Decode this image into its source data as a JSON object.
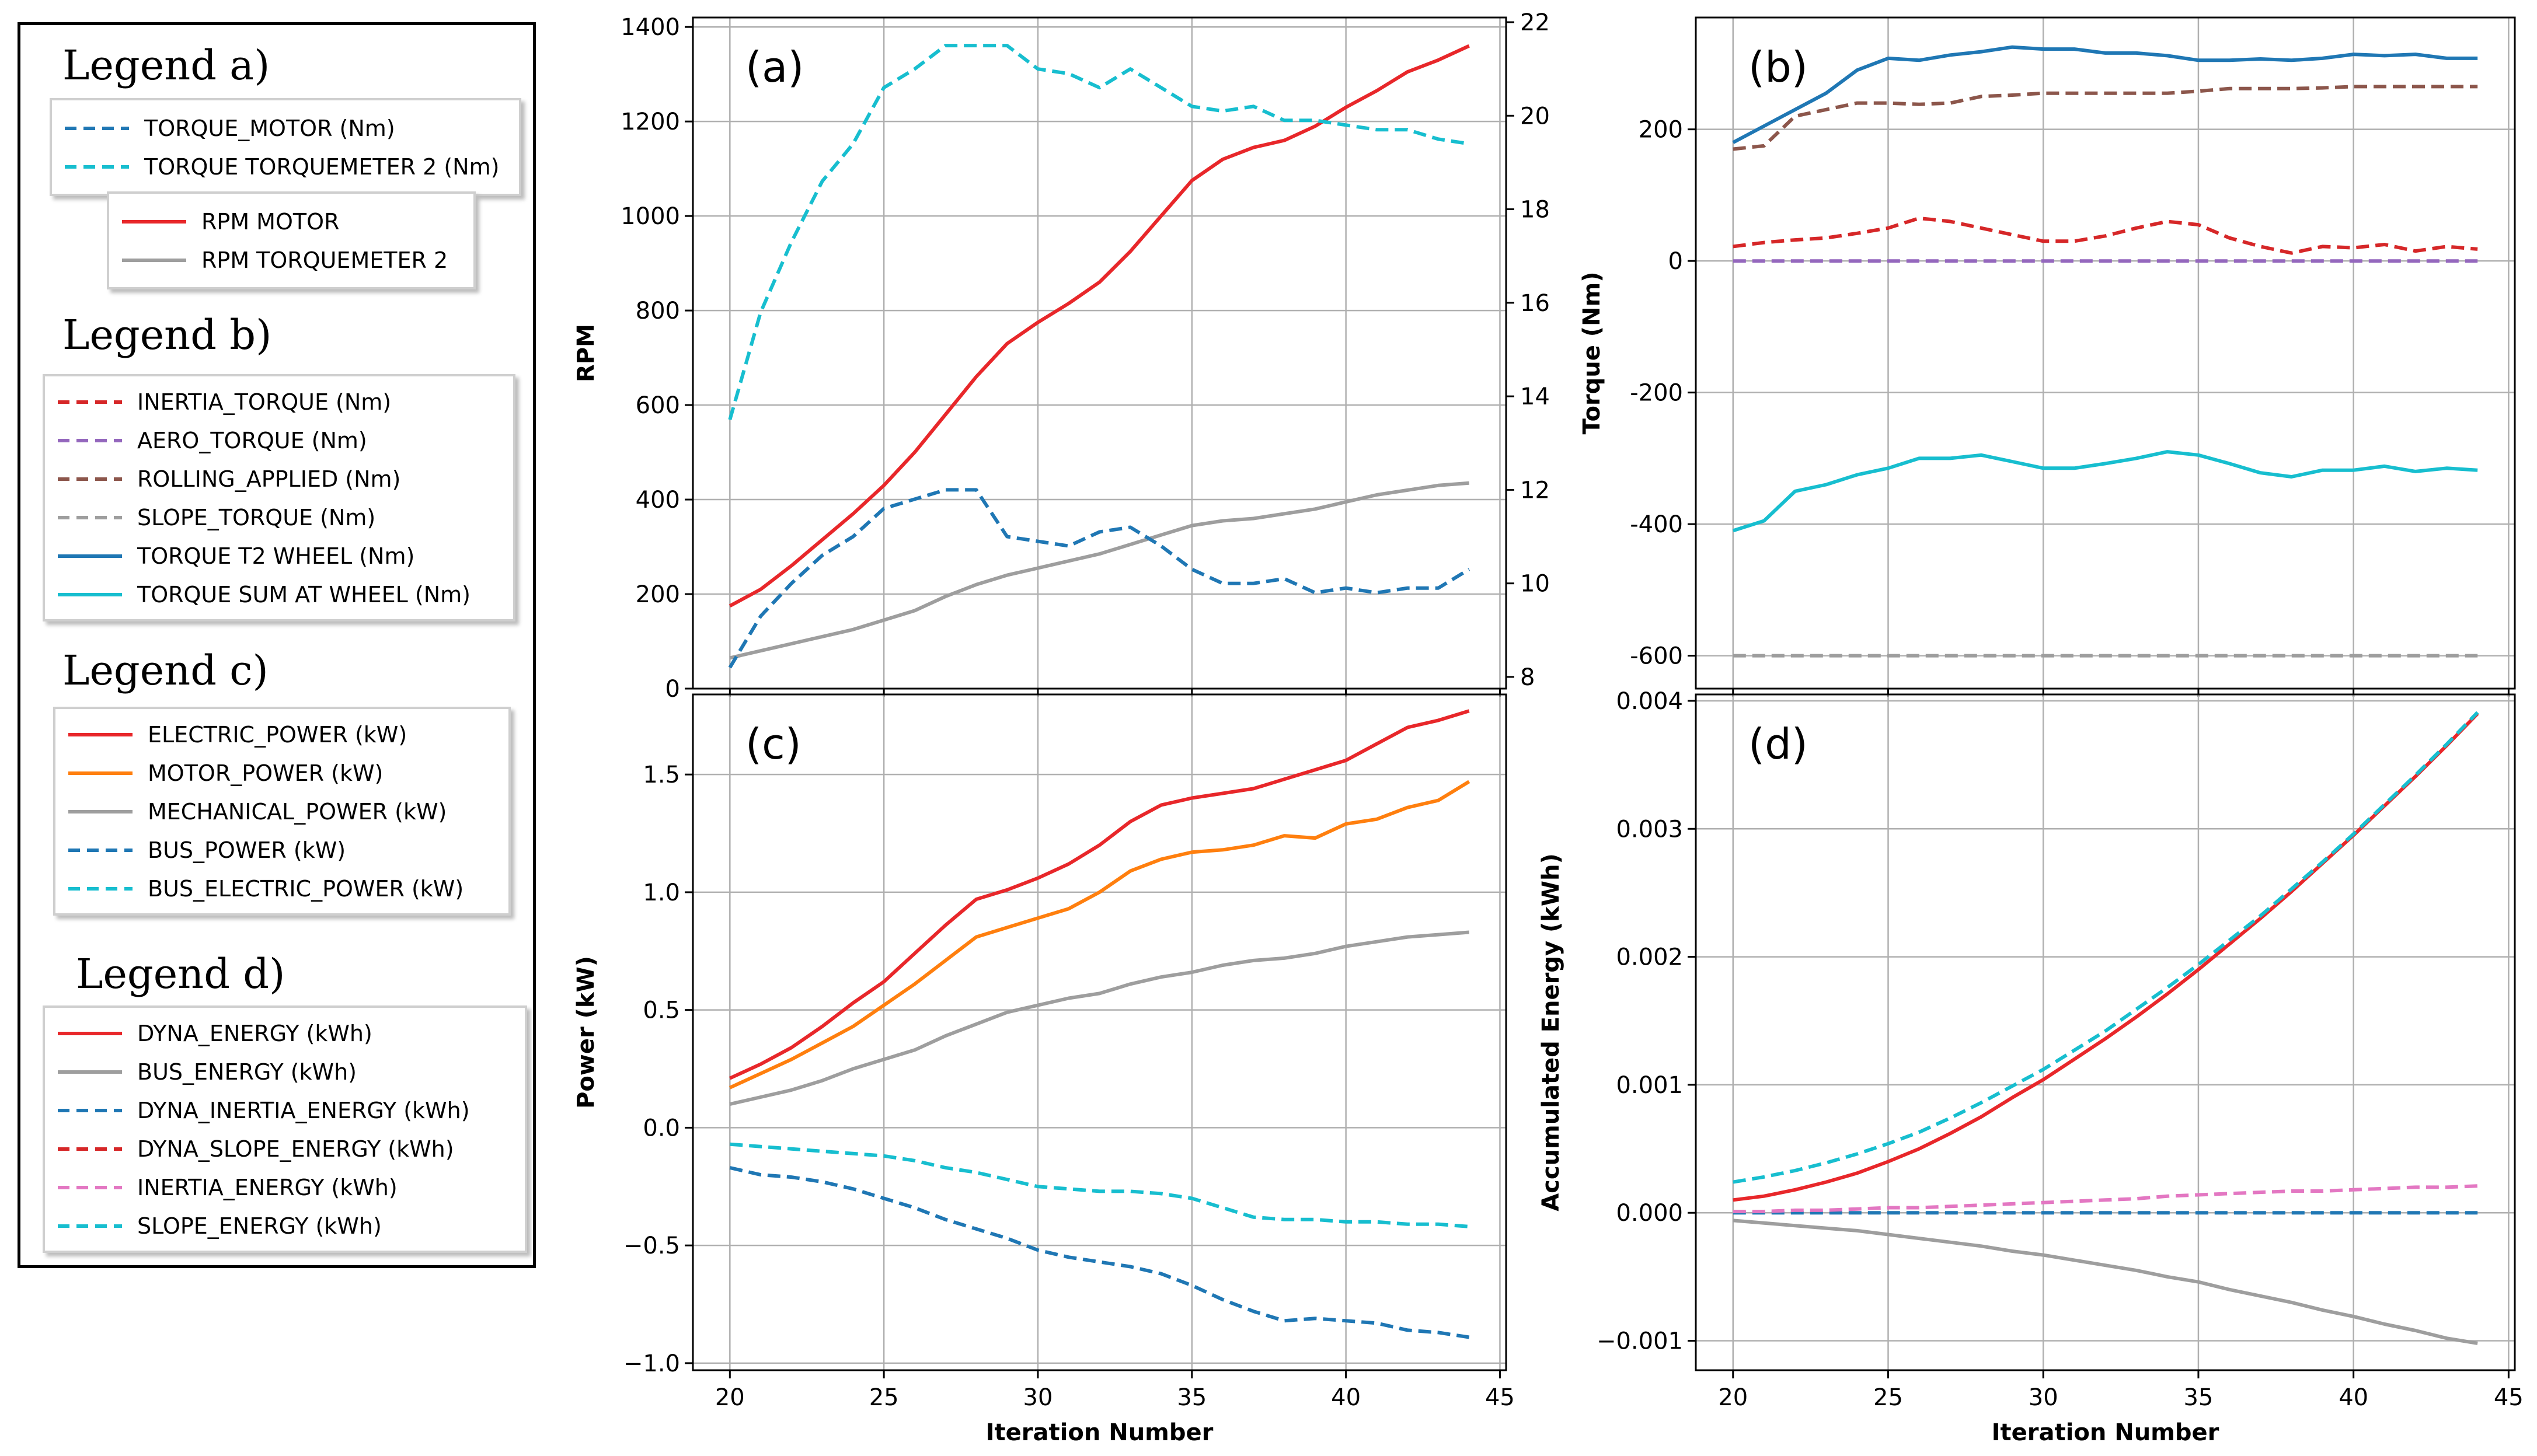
{
  "legends": [
    {
      "heading": "Legend a)",
      "groups": [
        {
          "entries": [
            {
              "label": "TORQUE_MOTOR (Nm)",
              "color": "#1f77b4",
              "dash": true
            },
            {
              "label": "TORQUE TORQUEMETER 2 (Nm)",
              "color": "#17becf",
              "dash": true
            }
          ]
        },
        {
          "entries": [
            {
              "label": "RPM MOTOR",
              "color": "#e8272a",
              "dash": false
            },
            {
              "label": "RPM TORQUEMETER 2",
              "color": "#9e9e9e",
              "dash": false
            }
          ]
        }
      ]
    },
    {
      "heading": "Legend b)",
      "groups": [
        {
          "entries": [
            {
              "label": "INERTIA_TORQUE (Nm)",
              "color": "#d62728",
              "dash": true
            },
            {
              "label": "AERO_TORQUE (Nm)",
              "color": "#9467bd",
              "dash": true
            },
            {
              "label": "ROLLING_APPLIED (Nm)",
              "color": "#8c564b",
              "dash": true
            },
            {
              "label": "SLOPE_TORQUE (Nm)",
              "color": "#9e9e9e",
              "dash": true
            },
            {
              "label": "TORQUE T2 WHEEL (Nm)",
              "color": "#1f77b4",
              "dash": false
            },
            {
              "label": "TORQUE SUM AT WHEEL (Nm)",
              "color": "#17becf",
              "dash": false
            }
          ]
        }
      ]
    },
    {
      "heading": "Legend c)",
      "groups": [
        {
          "entries": [
            {
              "label": "ELECTRIC_POWER (kW)",
              "color": "#e8272a",
              "dash": false
            },
            {
              "label": "MOTOR_POWER (kW)",
              "color": "#ff7f0e",
              "dash": false
            },
            {
              "label": "MECHANICAL_POWER (kW)",
              "color": "#9e9e9e",
              "dash": false
            },
            {
              "label": "BUS_POWER (kW)",
              "color": "#1f77b4",
              "dash": true
            },
            {
              "label": "BUS_ELECTRIC_POWER (kW)",
              "color": "#17becf",
              "dash": true
            }
          ]
        }
      ]
    },
    {
      "heading": "Legend d)",
      "groups": [
        {
          "entries": [
            {
              "label": "DYNA_ENERGY (kWh)",
              "color": "#e8272a",
              "dash": false
            },
            {
              "label": "BUS_ENERGY (kWh)",
              "color": "#9e9e9e",
              "dash": false
            },
            {
              "label": "DYNA_INERTIA_ENERGY (kWh)",
              "color": "#1f77b4",
              "dash": true
            },
            {
              "label": "DYNA_SLOPE_ENERGY (kWh)",
              "color": "#d62728",
              "dash": true
            },
            {
              "label": "INERTIA_ENERGY (kWh)",
              "color": "#e377c2",
              "dash": true
            },
            {
              "label": "SLOPE_ENERGY (kWh)",
              "color": "#17becf",
              "dash": true
            }
          ]
        }
      ]
    }
  ],
  "chart_data": [
    {
      "id": "a",
      "panel_label": "(a)",
      "type": "line",
      "xlabel": "",
      "ylabel": "RPM",
      "ylabel_right": "Torque (Nm)",
      "xlim": [
        18.8,
        45.2
      ],
      "ylim": [
        0,
        1420
      ],
      "ylim_right": [
        7.75,
        22.1
      ],
      "xticks": [
        20,
        25,
        30,
        35,
        40,
        45
      ],
      "show_xtick_labels": false,
      "yticks": [
        0,
        200,
        400,
        600,
        800,
        1000,
        1200,
        1400
      ],
      "yticks_right": [
        8,
        10,
        12,
        14,
        16,
        18,
        20,
        22
      ],
      "grid": true,
      "x": [
        20,
        21,
        22,
        23,
        24,
        25,
        26,
        27,
        28,
        29,
        30,
        31,
        32,
        33,
        34,
        35,
        36,
        37,
        38,
        39,
        40,
        41,
        42,
        43,
        44
      ],
      "series": [
        {
          "axis": "left",
          "color": "#e8272a",
          "dash": false,
          "values": [
            175,
            210,
            260,
            315,
            370,
            430,
            500,
            580,
            660,
            730,
            775,
            815,
            860,
            925,
            1000,
            1075,
            1120,
            1145,
            1160,
            1190,
            1230,
            1265,
            1305,
            1330,
            1360
          ]
        },
        {
          "axis": "left",
          "color": "#9e9e9e",
          "dash": false,
          "values": [
            65,
            80,
            95,
            110,
            125,
            145,
            165,
            195,
            220,
            240,
            255,
            270,
            285,
            305,
            325,
            345,
            355,
            360,
            370,
            380,
            395,
            410,
            420,
            430,
            435
          ]
        },
        {
          "axis": "right",
          "color": "#1f77b4",
          "dash": true,
          "values": [
            8.2,
            9.3,
            10.0,
            10.6,
            11.0,
            11.6,
            11.8,
            12.0,
            12.0,
            11.0,
            10.9,
            10.8,
            11.1,
            11.2,
            10.8,
            10.3,
            10.0,
            10.0,
            10.1,
            9.8,
            9.9,
            9.8,
            9.9,
            9.9,
            10.3
          ]
        },
        {
          "axis": "right",
          "color": "#17becf",
          "dash": true,
          "values": [
            13.5,
            15.8,
            17.3,
            18.6,
            19.4,
            20.6,
            21.0,
            21.5,
            21.5,
            21.5,
            21.0,
            20.9,
            20.6,
            21.0,
            20.6,
            20.2,
            20.1,
            20.2,
            19.9,
            19.9,
            19.8,
            19.7,
            19.7,
            19.5,
            19.4
          ]
        }
      ]
    },
    {
      "id": "b",
      "panel_label": "(b)",
      "type": "line",
      "xlabel": "",
      "ylabel": "Torque (Nm)",
      "xlim": [
        18.8,
        45.2
      ],
      "ylim": [
        -650,
        370
      ],
      "xticks": [
        20,
        25,
        30,
        35,
        40,
        45
      ],
      "show_xtick_labels": false,
      "yticks": [
        -600,
        -400,
        -200,
        0,
        200
      ],
      "grid": true,
      "x": [
        20,
        21,
        22,
        23,
        24,
        25,
        26,
        27,
        28,
        29,
        30,
        31,
        32,
        33,
        34,
        35,
        36,
        37,
        38,
        39,
        40,
        41,
        42,
        43,
        44
      ],
      "series": [
        {
          "color": "#1f77b4",
          "dash": false,
          "values": [
            180,
            205,
            230,
            255,
            290,
            308,
            305,
            313,
            318,
            325,
            322,
            322,
            316,
            316,
            312,
            305,
            305,
            307,
            305,
            308,
            314,
            312,
            314,
            308,
            308
          ]
        },
        {
          "color": "#17becf",
          "dash": false,
          "values": [
            -410,
            -395,
            -350,
            -340,
            -325,
            -315,
            -300,
            -300,
            -295,
            -305,
            -315,
            -315,
            -308,
            -300,
            -290,
            -295,
            -308,
            -322,
            -328,
            -318,
            -318,
            -312,
            -320,
            -315,
            -318
          ]
        },
        {
          "color": "#8c564b",
          "dash": true,
          "values": [
            170,
            175,
            220,
            230,
            240,
            240,
            238,
            240,
            250,
            252,
            255,
            255,
            255,
            255,
            255,
            258,
            262,
            262,
            262,
            263,
            265,
            265,
            265,
            265,
            265
          ]
        },
        {
          "color": "#d62728",
          "dash": true,
          "values": [
            22,
            28,
            32,
            35,
            42,
            50,
            65,
            60,
            50,
            40,
            30,
            30,
            38,
            50,
            60,
            55,
            35,
            22,
            12,
            22,
            20,
            25,
            15,
            22,
            18
          ]
        },
        {
          "color": "#9467bd",
          "dash": true,
          "values": [
            0,
            0,
            0,
            0,
            0,
            0,
            0,
            0,
            0,
            0,
            0,
            0,
            0,
            0,
            0,
            0,
            0,
            0,
            0,
            0,
            0,
            0,
            0,
            0,
            0
          ]
        },
        {
          "color": "#9e9e9e",
          "dash": true,
          "values": [
            -600,
            -600,
            -600,
            -600,
            -600,
            -600,
            -600,
            -600,
            -600,
            -600,
            -600,
            -600,
            -600,
            -600,
            -600,
            -600,
            -600,
            -600,
            -600,
            -600,
            -600,
            -600,
            -600,
            -600,
            -600
          ]
        }
      ]
    },
    {
      "id": "c",
      "panel_label": "(c)",
      "type": "line",
      "xlabel": "Iteration Number",
      "ylabel": "Power (kW)",
      "xlim": [
        18.8,
        45.2
      ],
      "ylim": [
        -1.03,
        1.84
      ],
      "xticks": [
        20,
        25,
        30,
        35,
        40,
        45
      ],
      "show_xtick_labels": true,
      "yticks": [
        -1.0,
        -0.5,
        0.0,
        0.5,
        1.0,
        1.5
      ],
      "ytick_labels": [
        "−1.0",
        "−0.5",
        "0.0",
        "0.5",
        "1.0",
        "1.5"
      ],
      "grid": true,
      "x": [
        20,
        21,
        22,
        23,
        24,
        25,
        26,
        27,
        28,
        29,
        30,
        31,
        32,
        33,
        34,
        35,
        36,
        37,
        38,
        39,
        40,
        41,
        42,
        43,
        44
      ],
      "series": [
        {
          "color": "#e8272a",
          "dash": false,
          "values": [
            0.21,
            0.27,
            0.34,
            0.43,
            0.53,
            0.62,
            0.74,
            0.86,
            0.97,
            1.01,
            1.06,
            1.12,
            1.2,
            1.3,
            1.37,
            1.4,
            1.42,
            1.44,
            1.48,
            1.52,
            1.56,
            1.63,
            1.7,
            1.73,
            1.77
          ]
        },
        {
          "color": "#ff7f0e",
          "dash": false,
          "values": [
            0.17,
            0.23,
            0.29,
            0.36,
            0.43,
            0.52,
            0.61,
            0.71,
            0.81,
            0.85,
            0.89,
            0.93,
            1.0,
            1.09,
            1.14,
            1.17,
            1.18,
            1.2,
            1.24,
            1.23,
            1.29,
            1.31,
            1.36,
            1.39,
            1.47
          ]
        },
        {
          "color": "#9e9e9e",
          "dash": false,
          "values": [
            0.1,
            0.13,
            0.16,
            0.2,
            0.25,
            0.29,
            0.33,
            0.39,
            0.44,
            0.49,
            0.52,
            0.55,
            0.57,
            0.61,
            0.64,
            0.66,
            0.69,
            0.71,
            0.72,
            0.74,
            0.77,
            0.79,
            0.81,
            0.82,
            0.83
          ]
        },
        {
          "color": "#1f77b4",
          "dash": true,
          "values": [
            -0.17,
            -0.2,
            -0.21,
            -0.23,
            -0.26,
            -0.3,
            -0.34,
            -0.39,
            -0.43,
            -0.47,
            -0.52,
            -0.55,
            -0.57,
            -0.59,
            -0.62,
            -0.67,
            -0.73,
            -0.78,
            -0.82,
            -0.81,
            -0.82,
            -0.83,
            -0.86,
            -0.87,
            -0.89
          ]
        },
        {
          "color": "#17becf",
          "dash": true,
          "values": [
            -0.07,
            -0.08,
            -0.09,
            -0.1,
            -0.11,
            -0.12,
            -0.14,
            -0.17,
            -0.19,
            -0.22,
            -0.25,
            -0.26,
            -0.27,
            -0.27,
            -0.28,
            -0.3,
            -0.34,
            -0.38,
            -0.39,
            -0.39,
            -0.4,
            -0.4,
            -0.41,
            -0.41,
            -0.42
          ]
        }
      ]
    },
    {
      "id": "d",
      "panel_label": "(d)",
      "type": "line",
      "xlabel": "Iteration Number",
      "ylabel": "Accumulated Energy (kWh)",
      "xlim": [
        18.8,
        45.2
      ],
      "ylim": [
        -0.00123,
        0.00405
      ],
      "xticks": [
        20,
        25,
        30,
        35,
        40,
        45
      ],
      "show_xtick_labels": true,
      "yticks": [
        -0.001,
        0.0,
        0.001,
        0.002,
        0.003,
        0.004
      ],
      "ytick_labels": [
        "−0.001",
        "0.000",
        "0.001",
        "0.002",
        "0.003",
        "0.004"
      ],
      "grid": true,
      "x": [
        20,
        21,
        22,
        23,
        24,
        25,
        26,
        27,
        28,
        29,
        30,
        31,
        32,
        33,
        34,
        35,
        36,
        37,
        38,
        39,
        40,
        41,
        42,
        43,
        44
      ],
      "series": [
        {
          "color": "#e8272a",
          "dash": false,
          "values": [
            0.0001,
            0.00013,
            0.00018,
            0.00024,
            0.00031,
            0.0004,
            0.0005,
            0.00062,
            0.00075,
            0.0009,
            0.00104,
            0.0012,
            0.00136,
            0.00153,
            0.00171,
            0.0019,
            0.0021,
            0.0023,
            0.00251,
            0.00273,
            0.00295,
            0.00318,
            0.00341,
            0.00365,
            0.0039
          ]
        },
        {
          "color": "#17becf",
          "dash": true,
          "values": [
            0.00024,
            0.00028,
            0.00033,
            0.00039,
            0.00046,
            0.00054,
            0.00063,
            0.00074,
            0.00086,
            0.00099,
            0.00112,
            0.00127,
            0.00142,
            0.00159,
            0.00176,
            0.00194,
            0.00213,
            0.00232,
            0.00253,
            0.00274,
            0.00296,
            0.00319,
            0.00342,
            0.00366,
            0.00391
          ]
        },
        {
          "color": "#1f77b4",
          "dash": true,
          "values": [
            0,
            0,
            0,
            0,
            0,
            0,
            0,
            0,
            0,
            0,
            0,
            0,
            0,
            0,
            0,
            0,
            0,
            0,
            0,
            0,
            0,
            0,
            0,
            0,
            0
          ]
        },
        {
          "color": "#e377c2",
          "dash": true,
          "values": [
            1e-05,
            1e-05,
            2e-05,
            2e-05,
            3e-05,
            4e-05,
            4e-05,
            5e-05,
            6e-05,
            7e-05,
            8e-05,
            9e-05,
            0.0001,
            0.00011,
            0.00013,
            0.00014,
            0.00015,
            0.00016,
            0.00017,
            0.00017,
            0.00018,
            0.00019,
            0.0002,
            0.0002,
            0.00021
          ]
        },
        {
          "color": "#9e9e9e",
          "dash": false,
          "values": [
            -6e-05,
            -8e-05,
            -0.0001,
            -0.00012,
            -0.00014,
            -0.00017,
            -0.0002,
            -0.00023,
            -0.00026,
            -0.0003,
            -0.00033,
            -0.00037,
            -0.00041,
            -0.00045,
            -0.0005,
            -0.00054,
            -0.0006,
            -0.00065,
            -0.0007,
            -0.00076,
            -0.00081,
            -0.00087,
            -0.00092,
            -0.00098,
            -0.00102
          ]
        }
      ]
    }
  ]
}
